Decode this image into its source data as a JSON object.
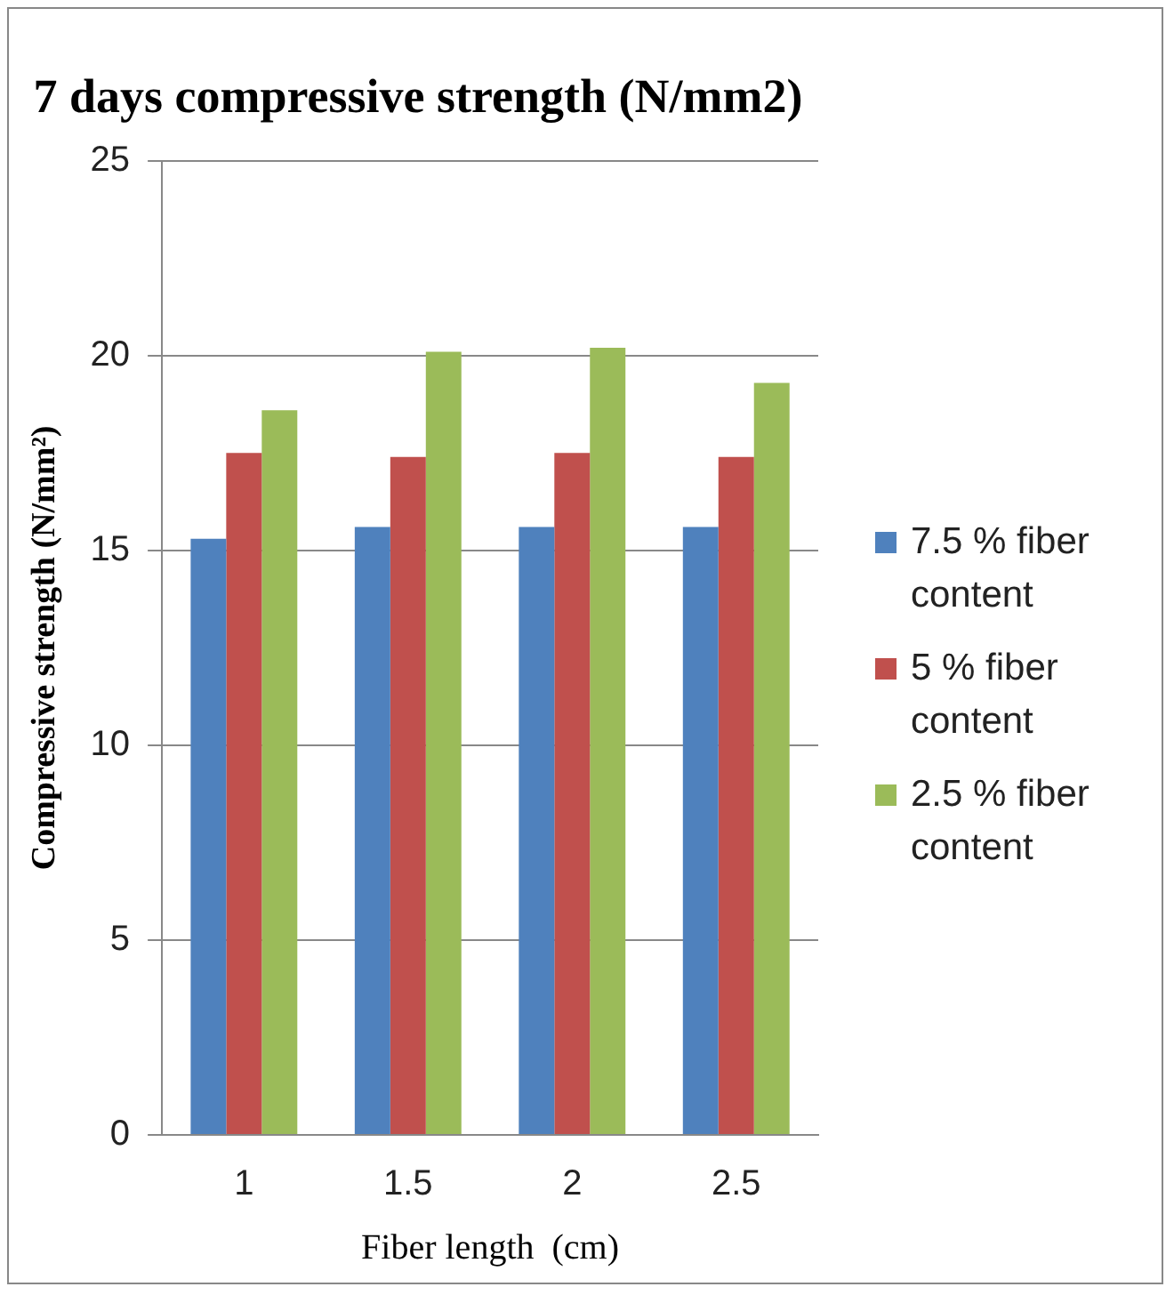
{
  "chart_data": {
    "type": "bar",
    "title": "7 days compressive strength (N/mm2)",
    "xlabel": "Fiber length  (cm)",
    "ylabel": "Compressive strength (N/mm²)",
    "categories": [
      "1",
      "1.5",
      "2",
      "2.5"
    ],
    "series": [
      {
        "name": "7.5 % fiber content",
        "color": "#4f81bd",
        "values": [
          15.3,
          15.6,
          15.6,
          15.6
        ]
      },
      {
        "name": "5 % fiber content",
        "color": "#c0504d",
        "values": [
          17.5,
          17.4,
          17.5,
          17.4
        ]
      },
      {
        "name": "2.5 % fiber content",
        "color": "#9bbb59",
        "values": [
          18.6,
          20.1,
          20.2,
          19.3
        ]
      }
    ],
    "ylim": [
      0,
      25
    ],
    "yticks": [
      0,
      5,
      10,
      15,
      20,
      25
    ],
    "grid": "y",
    "legend": "right"
  }
}
